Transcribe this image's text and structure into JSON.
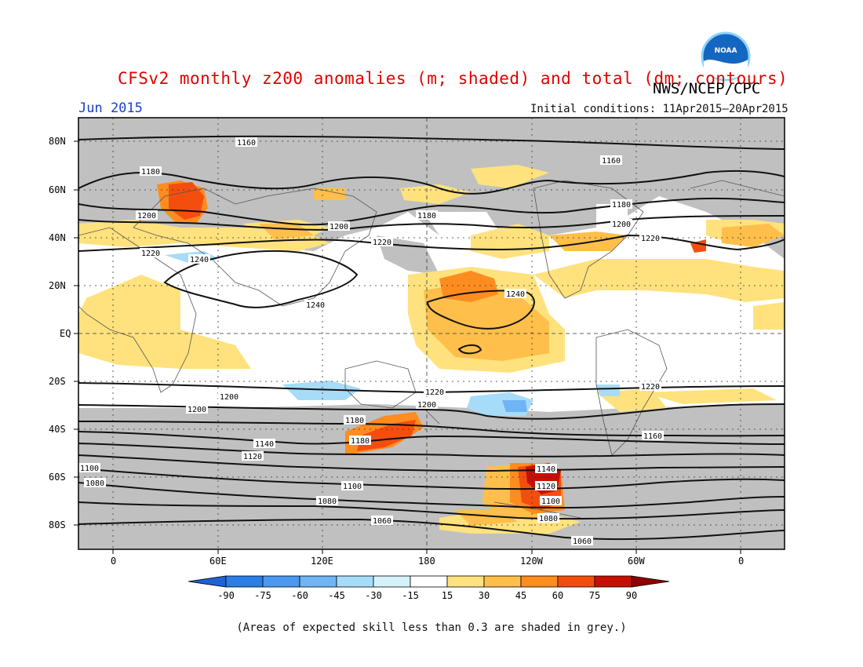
{
  "title": "CFSv2 monthly z200 anomalies (m; shaded) and total (dm; contours)",
  "agency": "NWS/NCEP/CPC",
  "month": "Jun 2015",
  "initial_conditions": "Initial conditions: 11Apr2015–20Apr2015",
  "footnote": "(Areas of expected skill less than 0.3 are shaded in grey.)",
  "logo_text": "NOAA",
  "lat_labels": [
    "80N",
    "60N",
    "40N",
    "20N",
    "EQ",
    "20S",
    "40S",
    "60S",
    "80S"
  ],
  "lon_labels": [
    "0",
    "60E",
    "120E",
    "180",
    "120W",
    "60W",
    "0"
  ],
  "colorbar": {
    "labels": [
      "-90",
      "-75",
      "-60",
      "-45",
      "-30",
      "-15",
      "15",
      "30",
      "45",
      "60",
      "75",
      "90"
    ],
    "colors": [
      "#1f62d8",
      "#2b7ee6",
      "#4a98ef",
      "#6fb4f5",
      "#a7dcf9",
      "#d5f2fb",
      "#ffffff",
      "#ffe27d",
      "#ffbf4a",
      "#ff8c1f",
      "#f44e0f",
      "#c71005",
      "#8f0000"
    ]
  },
  "contour_labels": [
    "1160",
    "1160",
    "1180",
    "1180",
    "1180",
    "1200",
    "1200",
    "1200",
    "1220",
    "1220",
    "1220",
    "1240",
    "1240",
    "1240",
    "1220",
    "1220",
    "1200",
    "1200",
    "1200",
    "1180",
    "1180",
    "1160",
    "1140",
    "1140",
    "1120",
    "1120",
    "1100",
    "1100",
    "1100",
    "1080",
    "1080",
    "1080",
    "1060",
    "1060"
  ],
  "colors": {
    "skill_grey": "#c0c0c0",
    "title_red": "#e00000",
    "month_blue": "#1a3fcc"
  }
}
